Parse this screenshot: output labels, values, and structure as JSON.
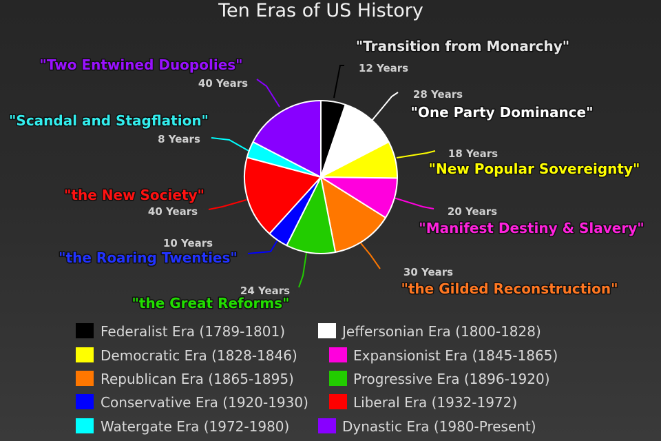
{
  "chart_data": {
    "type": "pie",
    "title": "Ten Eras of US History",
    "slices": [
      {
        "era": "Federalist Era (1789-1801)",
        "nickname": "\"Transition from Monarchy\"",
        "years_label": "12 Years",
        "value": 12,
        "color": "#000000",
        "label_color": "#e8e8e8"
      },
      {
        "era": "Jeffersonian Era (1800-1828)",
        "nickname": "\"One Party Dominance\"",
        "years_label": "28 Years",
        "value": 28,
        "color": "#ffffff",
        "label_color": "#ffffff"
      },
      {
        "era": "Democratic Era (1828-1846)",
        "nickname": "\"New Popular Sovereignty\"",
        "years_label": "18 Years",
        "value": 18,
        "color": "#ffff00",
        "label_color": "#ffff00"
      },
      {
        "era": "Expansionist Era (1845-1865)",
        "nickname": "\"Manifest Destiny & Slavery\"",
        "years_label": "20 Years",
        "value": 20,
        "color": "#ff00dd",
        "label_color": "#ff22dd"
      },
      {
        "era": "Republican Era (1865-1895)",
        "nickname": "\"the Gilded Reconstruction\"",
        "years_label": "30 Years",
        "value": 30,
        "color": "#ff7700",
        "label_color": "#ff7722"
      },
      {
        "era": "Progressive Era (1896-1920)",
        "nickname": "\"the Great Reforms\"",
        "years_label": "24 Years",
        "value": 24,
        "color": "#22cc00",
        "label_color": "#22dd00"
      },
      {
        "era": "Conservative Era (1920-1930)",
        "nickname": "\"the Roaring Twenties\"",
        "years_label": "10 Years",
        "value": 10,
        "color": "#0000ff",
        "label_color": "#2233ff"
      },
      {
        "era": "Liberal Era (1932-1972)",
        "nickname": "\"the New Society\"",
        "years_label": "40 Years",
        "value": 40,
        "color": "#ff0000",
        "label_color": "#ff1111"
      },
      {
        "era": "Watergate Era (1972-1980)",
        "nickname": "\"Scandal and Stagflation\"",
        "years_label": "8 Years",
        "value": 8,
        "color": "#00ffff",
        "label_color": "#33eeee"
      },
      {
        "era": "Dynastic Era (1980-Present)",
        "nickname": "\"Two Entwined Duopolies\"",
        "years_label": "40 Years",
        "value": 40,
        "color": "#8800ff",
        "label_color": "#9911ff"
      }
    ],
    "legend_order": [
      0,
      1,
      2,
      3,
      4,
      5,
      6,
      7,
      8,
      9
    ],
    "legend_placement": "bottom"
  }
}
